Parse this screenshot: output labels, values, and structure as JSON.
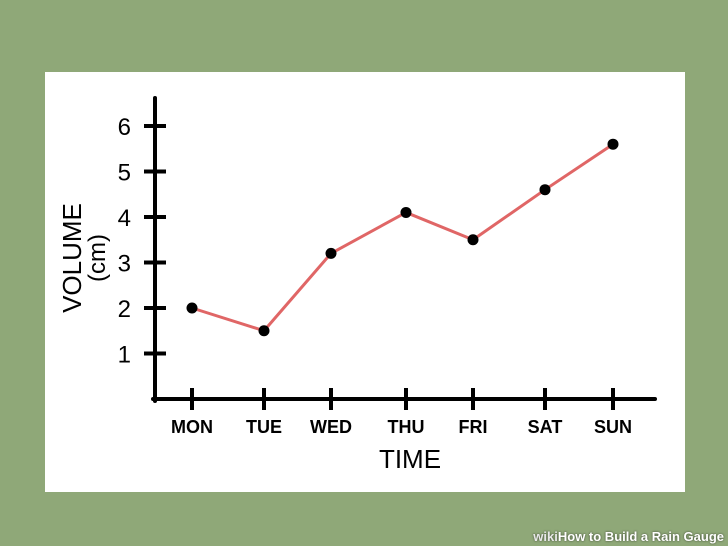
{
  "chart_data": {
    "type": "line",
    "categories": [
      "MON",
      "TUE",
      "WED",
      "THU",
      "FRI",
      "SAT",
      "SUN"
    ],
    "series": [
      {
        "values": [
          2.0,
          1.5,
          3.2,
          4.1,
          3.5,
          4.6,
          5.6
        ]
      }
    ],
    "xlabel": "TIME",
    "ylabel": "VOLUME",
    "ylabel_unit": "(cm)",
    "yticks": [
      1,
      2,
      3,
      4,
      5,
      6
    ],
    "ylim": [
      0,
      7
    ],
    "grid": false,
    "line_color": "#e06666",
    "point_color": "#000000"
  },
  "watermark": {
    "wiki": "wiki",
    "how": "How",
    "rest": " to Build a Rain Gauge"
  },
  "colors": {
    "background": "#8fa878",
    "card": "#ffffff"
  }
}
